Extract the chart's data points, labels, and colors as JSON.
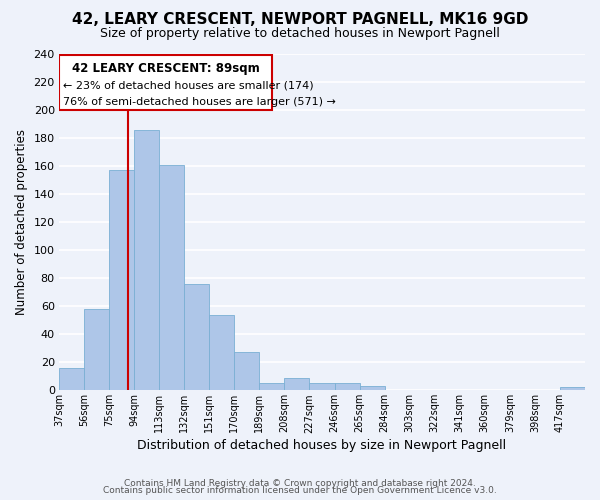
{
  "title": "42, LEARY CRESCENT, NEWPORT PAGNELL, MK16 9GD",
  "subtitle": "Size of property relative to detached houses in Newport Pagnell",
  "xlabel": "Distribution of detached houses by size in Newport Pagnell",
  "ylabel": "Number of detached properties",
  "bar_color": "#aec6e8",
  "bar_edge_color": "#7aafd4",
  "background_color": "#eef2fa",
  "grid_color": "white",
  "bin_labels": [
    "37sqm",
    "56sqm",
    "75sqm",
    "94sqm",
    "113sqm",
    "132sqm",
    "151sqm",
    "170sqm",
    "189sqm",
    "208sqm",
    "227sqm",
    "246sqm",
    "265sqm",
    "284sqm",
    "303sqm",
    "322sqm",
    "341sqm",
    "360sqm",
    "379sqm",
    "398sqm",
    "417sqm"
  ],
  "bar_heights": [
    16,
    58,
    157,
    186,
    161,
    76,
    54,
    27,
    5,
    9,
    5,
    5,
    3,
    0,
    0,
    0,
    0,
    0,
    0,
    0,
    2
  ],
  "vline_x": 89,
  "vline_color": "#cc0000",
  "bin_edges_values": [
    37,
    56,
    75,
    94,
    113,
    132,
    151,
    170,
    189,
    208,
    227,
    246,
    265,
    284,
    303,
    322,
    341,
    360,
    379,
    398,
    417
  ],
  "bin_width": 19,
  "annotation_title": "42 LEARY CRESCENT: 89sqm",
  "annotation_line1": "← 23% of detached houses are smaller (174)",
  "annotation_line2": "76% of semi-detached houses are larger (571) →",
  "annotation_box_color": "white",
  "annotation_box_edge": "#cc0000",
  "footer_line1": "Contains HM Land Registry data © Crown copyright and database right 2024.",
  "footer_line2": "Contains public sector information licensed under the Open Government Licence v3.0.",
  "ylim": [
    0,
    240
  ],
  "yticks": [
    0,
    20,
    40,
    60,
    80,
    100,
    120,
    140,
    160,
    180,
    200,
    220,
    240
  ]
}
